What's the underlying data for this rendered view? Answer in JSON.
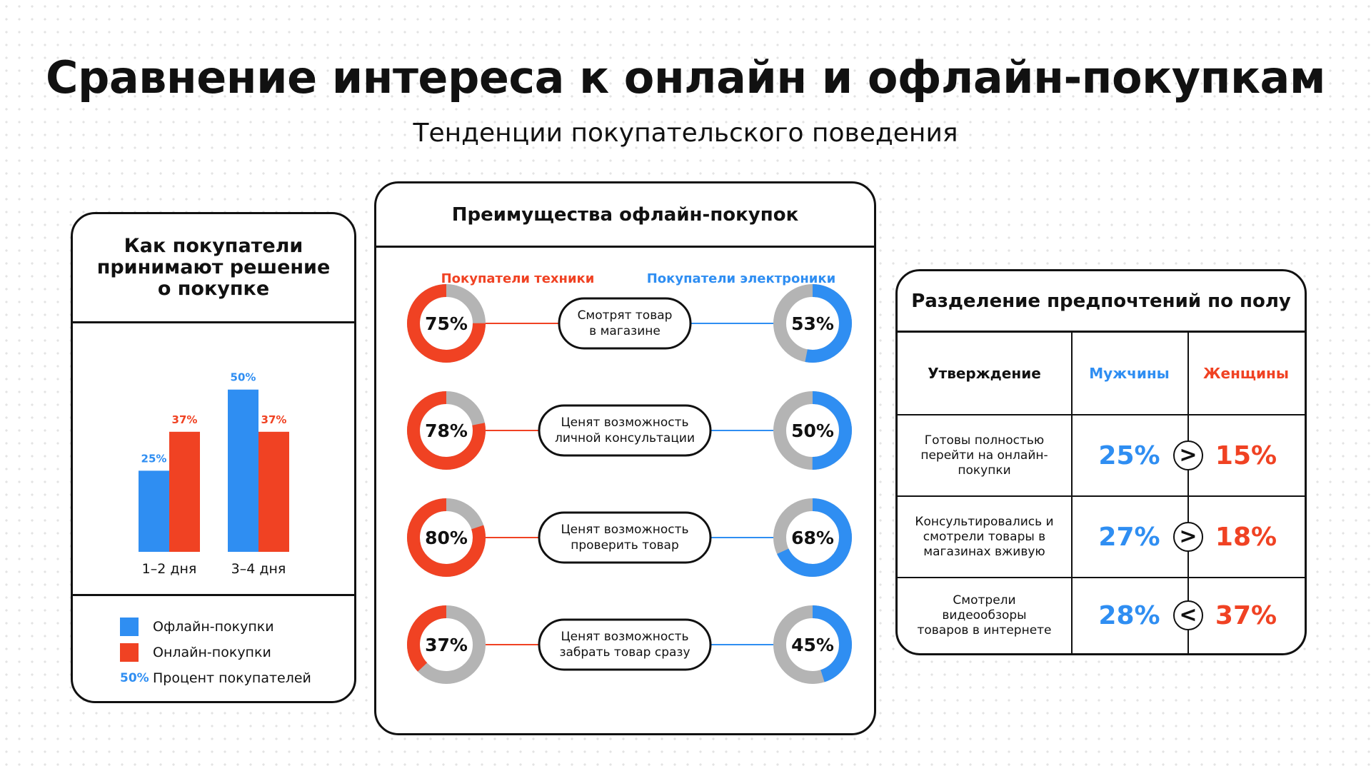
{
  "header": {
    "title": "Сравнение интереса к онлайн и офлайн-покупкам",
    "subtitle": "Тенденции покупательского поведения"
  },
  "colors": {
    "blue": "#2f8ef2",
    "red": "#f04223",
    "gray": "#b4b4b4",
    "outline": "#111111"
  },
  "chart_data": [
    {
      "type": "bar",
      "title": "Как покупатели принимают решение о покупке",
      "categories": [
        "1–2 дня",
        "3–4 дня"
      ],
      "series": [
        {
          "name": "Офлайн-покупки",
          "values": [
            25,
            50
          ],
          "labels": [
            "25%",
            "50%"
          ]
        },
        {
          "name": "Онлайн-покупки",
          "values": [
            37,
            37
          ],
          "labels": [
            "37%",
            "37%"
          ]
        }
      ],
      "ylim": [
        0,
        55
      ],
      "legend": {
        "placement": "bottom",
        "pct_sample": "50%",
        "pct_text": "Процент покупателей"
      }
    },
    {
      "type": "pie",
      "title": "Преимущества офлайн-покупок",
      "left_group": "Покупатели техники",
      "right_group": "Покупатели электроники",
      "rows": [
        {
          "label": "Смотрят товар в магазине",
          "left": 75,
          "left_label": "75%",
          "right": 53,
          "right_label": "53%"
        },
        {
          "label": "Ценят возможность личной консультации",
          "left": 78,
          "left_label": "78%",
          "right": 50,
          "right_label": "50%"
        },
        {
          "label": "Ценят возможность проверить товар",
          "left": 80,
          "left_label": "80%",
          "right": 68,
          "right_label": "68%"
        },
        {
          "label": "Ценят возможность забрать товар сразу",
          "left": 37,
          "left_label": "37%",
          "right": 45,
          "right_label": "45%"
        }
      ]
    },
    {
      "type": "table",
      "title": "Разделение предпочтений по полу",
      "columns": [
        "Утверждение",
        "Мужчины",
        "Женщины"
      ],
      "rows": [
        {
          "statement": "Готовы полностью перейти на онлайн-покупки",
          "men": "25%",
          "women": "15%",
          "compare": ">"
        },
        {
          "statement": "Консультировались и смотрели товары в магазинах вживую",
          "men": "27%",
          "women": "18%",
          "compare": ">"
        },
        {
          "statement": "Смотрели видеообзоры товаров в интернете",
          "men": "28%",
          "women": "37%",
          "compare": "<"
        }
      ]
    }
  ]
}
